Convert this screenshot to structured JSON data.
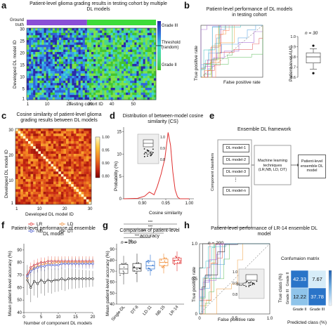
{
  "panels": {
    "a": "a",
    "b": "b",
    "c": "c",
    "d": "d",
    "e": "e",
    "f": "f",
    "g": "g",
    "h": "h"
  },
  "a": {
    "title": "Patient-level glioma grading results in testing cohort by multiple DL models",
    "row_label": "Ground truth",
    "xlabel": "Testing cohort ID",
    "ylabel": "Developed DL model ID",
    "xticks": [
      "1",
      "10",
      "20",
      "30",
      "40",
      "50"
    ],
    "yticks": [
      "1",
      "5",
      "10",
      "15",
      "20",
      "25",
      "30"
    ],
    "legend": {
      "top": "Grade III",
      "mid": "Threshold (random)",
      "bot": "Grade II"
    },
    "colors": {
      "grade_iii": "#8a4fd6",
      "grade_ii": "#3ddc3a"
    }
  },
  "chart_data": [
    {
      "panel": "b-left",
      "type": "line",
      "title": "Patient-level performance of DL models in testing cohort",
      "xlabel": "False positive rate",
      "ylabel": "True positive rate",
      "xlim": [
        0,
        1
      ],
      "ylim": [
        0,
        1
      ]
    },
    {
      "panel": "b-right",
      "type": "box",
      "ylabel": "Patient-level AUC",
      "yticks": [
        "0.6",
        "0.7",
        "0.8",
        "0.9",
        "1.0"
      ],
      "annotation": "n = 30",
      "whisker_low": 0.68,
      "q1": 0.74,
      "median": 0.8,
      "q3": 0.84,
      "whisker_high": 0.88,
      "outliers": [
        0.91,
        0.64
      ]
    },
    {
      "panel": "c",
      "type": "heatmap",
      "title": "Cosine similarity of patient-level glioma grading results between DL models",
      "xlabel": "Developed DL model ID",
      "ylabel": "Developed DL model ID",
      "xticks": [
        "1",
        "10",
        "20",
        "30"
      ],
      "yticks": [
        "1",
        "10",
        "20",
        "30"
      ],
      "colorbar": [
        "1.00",
        "0.95",
        "0.90",
        "0.80"
      ]
    },
    {
      "panel": "d",
      "type": "line",
      "title": "Distribution of between-model cosine similarity (CS)",
      "xlabel": "Cosine similarity",
      "ylabel": "Probability (%)",
      "xticks": [
        "0.90",
        "0.95",
        "1.00"
      ],
      "yticks": [
        "0",
        "5",
        "10",
        "15"
      ],
      "inset_ylabel": "CS",
      "inset_yticks": [
        "0.8",
        "0.9",
        "1.0"
      ]
    },
    {
      "panel": "f",
      "type": "line",
      "title": "Patient-level performance of ensemble DL model",
      "xlabel": "Number of component DL models",
      "ylabel": "Mean patient-level accuracy (%)",
      "xticks": [
        "0",
        "5",
        "10",
        "15",
        "20"
      ],
      "yticks": [
        "40",
        "50",
        "60",
        "70",
        "80",
        "90"
      ],
      "series": [
        {
          "name": "LR",
          "color": "#e03030"
        },
        {
          "name": "LD",
          "color": "#f08a30"
        },
        {
          "name": "NB",
          "color": "#4455cc"
        },
        {
          "name": "DT",
          "color": "#222222"
        }
      ]
    },
    {
      "panel": "g",
      "type": "box",
      "title": "Comparison of patient-level accuracy",
      "annotation": "n = 200",
      "categories": [
        "Single-DL",
        "DT-8",
        "LD-11",
        "NB-15",
        "LR-14"
      ],
      "ylabel": "Mean patient-level accuracy (%)",
      "yticks": [
        "40",
        "50",
        "60",
        "70",
        "80",
        "90"
      ],
      "sig": [
        "ns",
        "***",
        "***",
        "***",
        "***"
      ]
    },
    {
      "panel": "h-left",
      "type": "line",
      "title": "Patient-level performance of LR-14 ensemble DL model",
      "annotation": "n = 200",
      "xlabel": "False positive rate",
      "ylabel": "True positive rate",
      "xticks": [
        "0",
        "0.5",
        "1.0"
      ],
      "yticks": [
        "0",
        "0.5",
        "1.0"
      ],
      "inset_ylabel": "AUC",
      "inset_yticks": [
        "0.8",
        "0.9",
        "1.0"
      ]
    },
    {
      "panel": "h-right",
      "type": "heatmap",
      "title": "Confumaion matrix",
      "xlabel": "Predicted class (%)",
      "ylabel": "True class (%)",
      "categories": [
        "Grade II",
        "Grade III"
      ],
      "values": [
        [
          42.33,
          7.67
        ],
        [
          12.22,
          37.78
        ]
      ],
      "colorbar": [
        "40",
        "20",
        "0"
      ]
    }
  ],
  "e": {
    "title": "Ensemble DL framework",
    "models": [
      "DL model-1",
      "DL model-2",
      "DL model-3",
      "⋮",
      "DL model-n"
    ],
    "component_label": "Component classifiers",
    "ml_label": "Machine learning techniques (LR,NB, LD, DT)",
    "out_label": "Patient-level ensemble DL model"
  }
}
